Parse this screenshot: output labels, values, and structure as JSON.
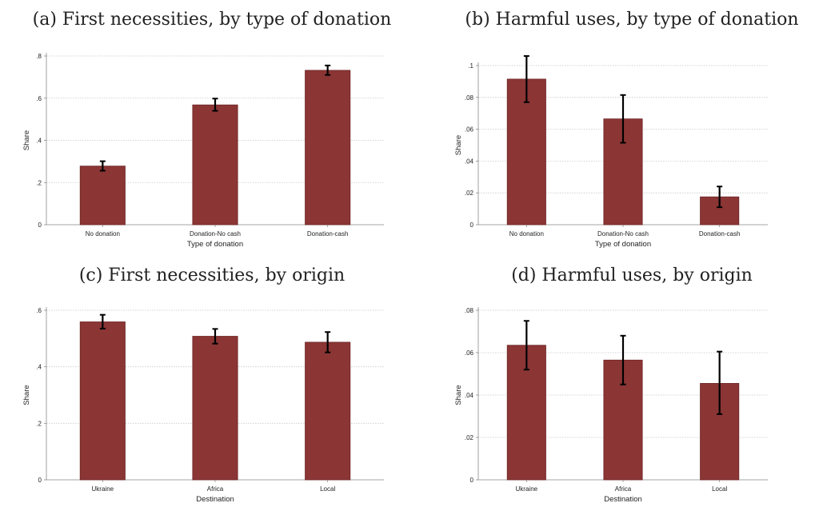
{
  "colors": {
    "bar": "#8b3535",
    "bar_edge": "#6e2525",
    "error": "#000000",
    "grid": "#c8c8c8",
    "axis": "#888888"
  },
  "chart_data": [
    {
      "type": "bar",
      "title": "(a) First necessities, by type of donation",
      "xlabel": "Type of donation",
      "ylabel": "Share",
      "categories": [
        "No donation",
        "Donation-No cash",
        "Donation-cash"
      ],
      "values": [
        0.278,
        0.568,
        0.732
      ],
      "error_low": [
        0.256,
        0.54,
        0.71
      ],
      "error_high": [
        0.301,
        0.598,
        0.755
      ],
      "ylim": [
        0,
        0.8
      ],
      "yticks": [
        0,
        0.2,
        0.4,
        0.6,
        0.8
      ],
      "ytick_labels": [
        "0",
        ".2",
        ".4",
        ".6",
        ".8"
      ],
      "grid": true
    },
    {
      "type": "bar",
      "title": "(b) Harmful uses, by type of donation",
      "xlabel": "Type of donation",
      "ylabel": "Share",
      "categories": [
        "No donation",
        "Donation-No cash",
        "Donation-cash"
      ],
      "values": [
        0.0915,
        0.0665,
        0.0175
      ],
      "error_low": [
        0.077,
        0.0515,
        0.011
      ],
      "error_high": [
        0.106,
        0.0815,
        0.024
      ],
      "ylim": [
        0,
        0.1
      ],
      "yticks": [
        0,
        0.02,
        0.04,
        0.06,
        0.08,
        0.1
      ],
      "ytick_labels": [
        "0",
        ".02",
        ".04",
        ".06",
        ".08",
        ".1"
      ],
      "grid": true
    },
    {
      "type": "bar",
      "title": "(c) First necessities, by origin",
      "xlabel": "Destination",
      "ylabel": "Share",
      "categories": [
        "Ukraine",
        "Africa",
        "Local"
      ],
      "values": [
        0.559,
        0.508,
        0.487
      ],
      "error_low": [
        0.535,
        0.482,
        0.451
      ],
      "error_high": [
        0.584,
        0.534,
        0.523
      ],
      "ylim": [
        0,
        0.6
      ],
      "yticks": [
        0,
        0.2,
        0.4,
        0.6
      ],
      "ytick_labels": [
        "0",
        ".2",
        ".4",
        ".6"
      ],
      "grid": true
    },
    {
      "type": "bar",
      "title": "(d) Harmful uses, by origin",
      "xlabel": "Destination",
      "ylabel": "Share",
      "categories": [
        "Ukraine",
        "Africa",
        "Local"
      ],
      "values": [
        0.0635,
        0.0565,
        0.0455
      ],
      "error_low": [
        0.052,
        0.045,
        0.031
      ],
      "error_high": [
        0.075,
        0.068,
        0.0605
      ],
      "ylim": [
        0,
        0.08
      ],
      "yticks": [
        0,
        0.02,
        0.04,
        0.06,
        0.08
      ],
      "ytick_labels": [
        "0",
        ".02",
        ".04",
        ".06",
        ".08"
      ],
      "grid": true
    }
  ]
}
